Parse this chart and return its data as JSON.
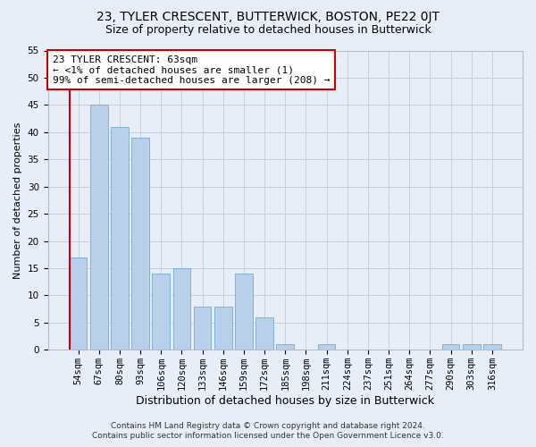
{
  "title_line1": "23, TYLER CRESCENT, BUTTERWICK, BOSTON, PE22 0JT",
  "title_line2": "Size of property relative to detached houses in Butterwick",
  "xlabel": "Distribution of detached houses by size in Butterwick",
  "ylabel": "Number of detached properties",
  "categories": [
    "54sqm",
    "67sqm",
    "80sqm",
    "93sqm",
    "106sqm",
    "120sqm",
    "133sqm",
    "146sqm",
    "159sqm",
    "172sqm",
    "185sqm",
    "198sqm",
    "211sqm",
    "224sqm",
    "237sqm",
    "251sqm",
    "264sqm",
    "277sqm",
    "290sqm",
    "303sqm",
    "316sqm"
  ],
  "values": [
    17,
    45,
    41,
    39,
    14,
    15,
    8,
    8,
    14,
    6,
    1,
    0,
    1,
    0,
    0,
    0,
    0,
    0,
    1,
    1,
    1
  ],
  "bar_color": "#b8d0ea",
  "bar_edge_color": "#7aaad0",
  "highlight_line_color": "#cc0000",
  "annotation_text": "23 TYLER CRESCENT: 63sqm\n← <1% of detached houses are smaller (1)\n99% of semi-detached houses are larger (208) →",
  "annotation_box_color": "#ffffff",
  "annotation_box_edge_color": "#cc0000",
  "ylim": [
    0,
    55
  ],
  "yticks": [
    0,
    5,
    10,
    15,
    20,
    25,
    30,
    35,
    40,
    45,
    50,
    55
  ],
  "footer_line1": "Contains HM Land Registry data © Crown copyright and database right 2024.",
  "footer_line2": "Contains public sector information licensed under the Open Government Licence v3.0.",
  "bg_color": "#e8eef8",
  "plot_bg_color": "#e8eef8",
  "grid_color": "#c5cfe0",
  "title1_fontsize": 10,
  "title2_fontsize": 9,
  "xlabel_fontsize": 9,
  "ylabel_fontsize": 8,
  "tick_fontsize": 7.5,
  "footer_fontsize": 6.5,
  "annotation_fontsize": 8
}
